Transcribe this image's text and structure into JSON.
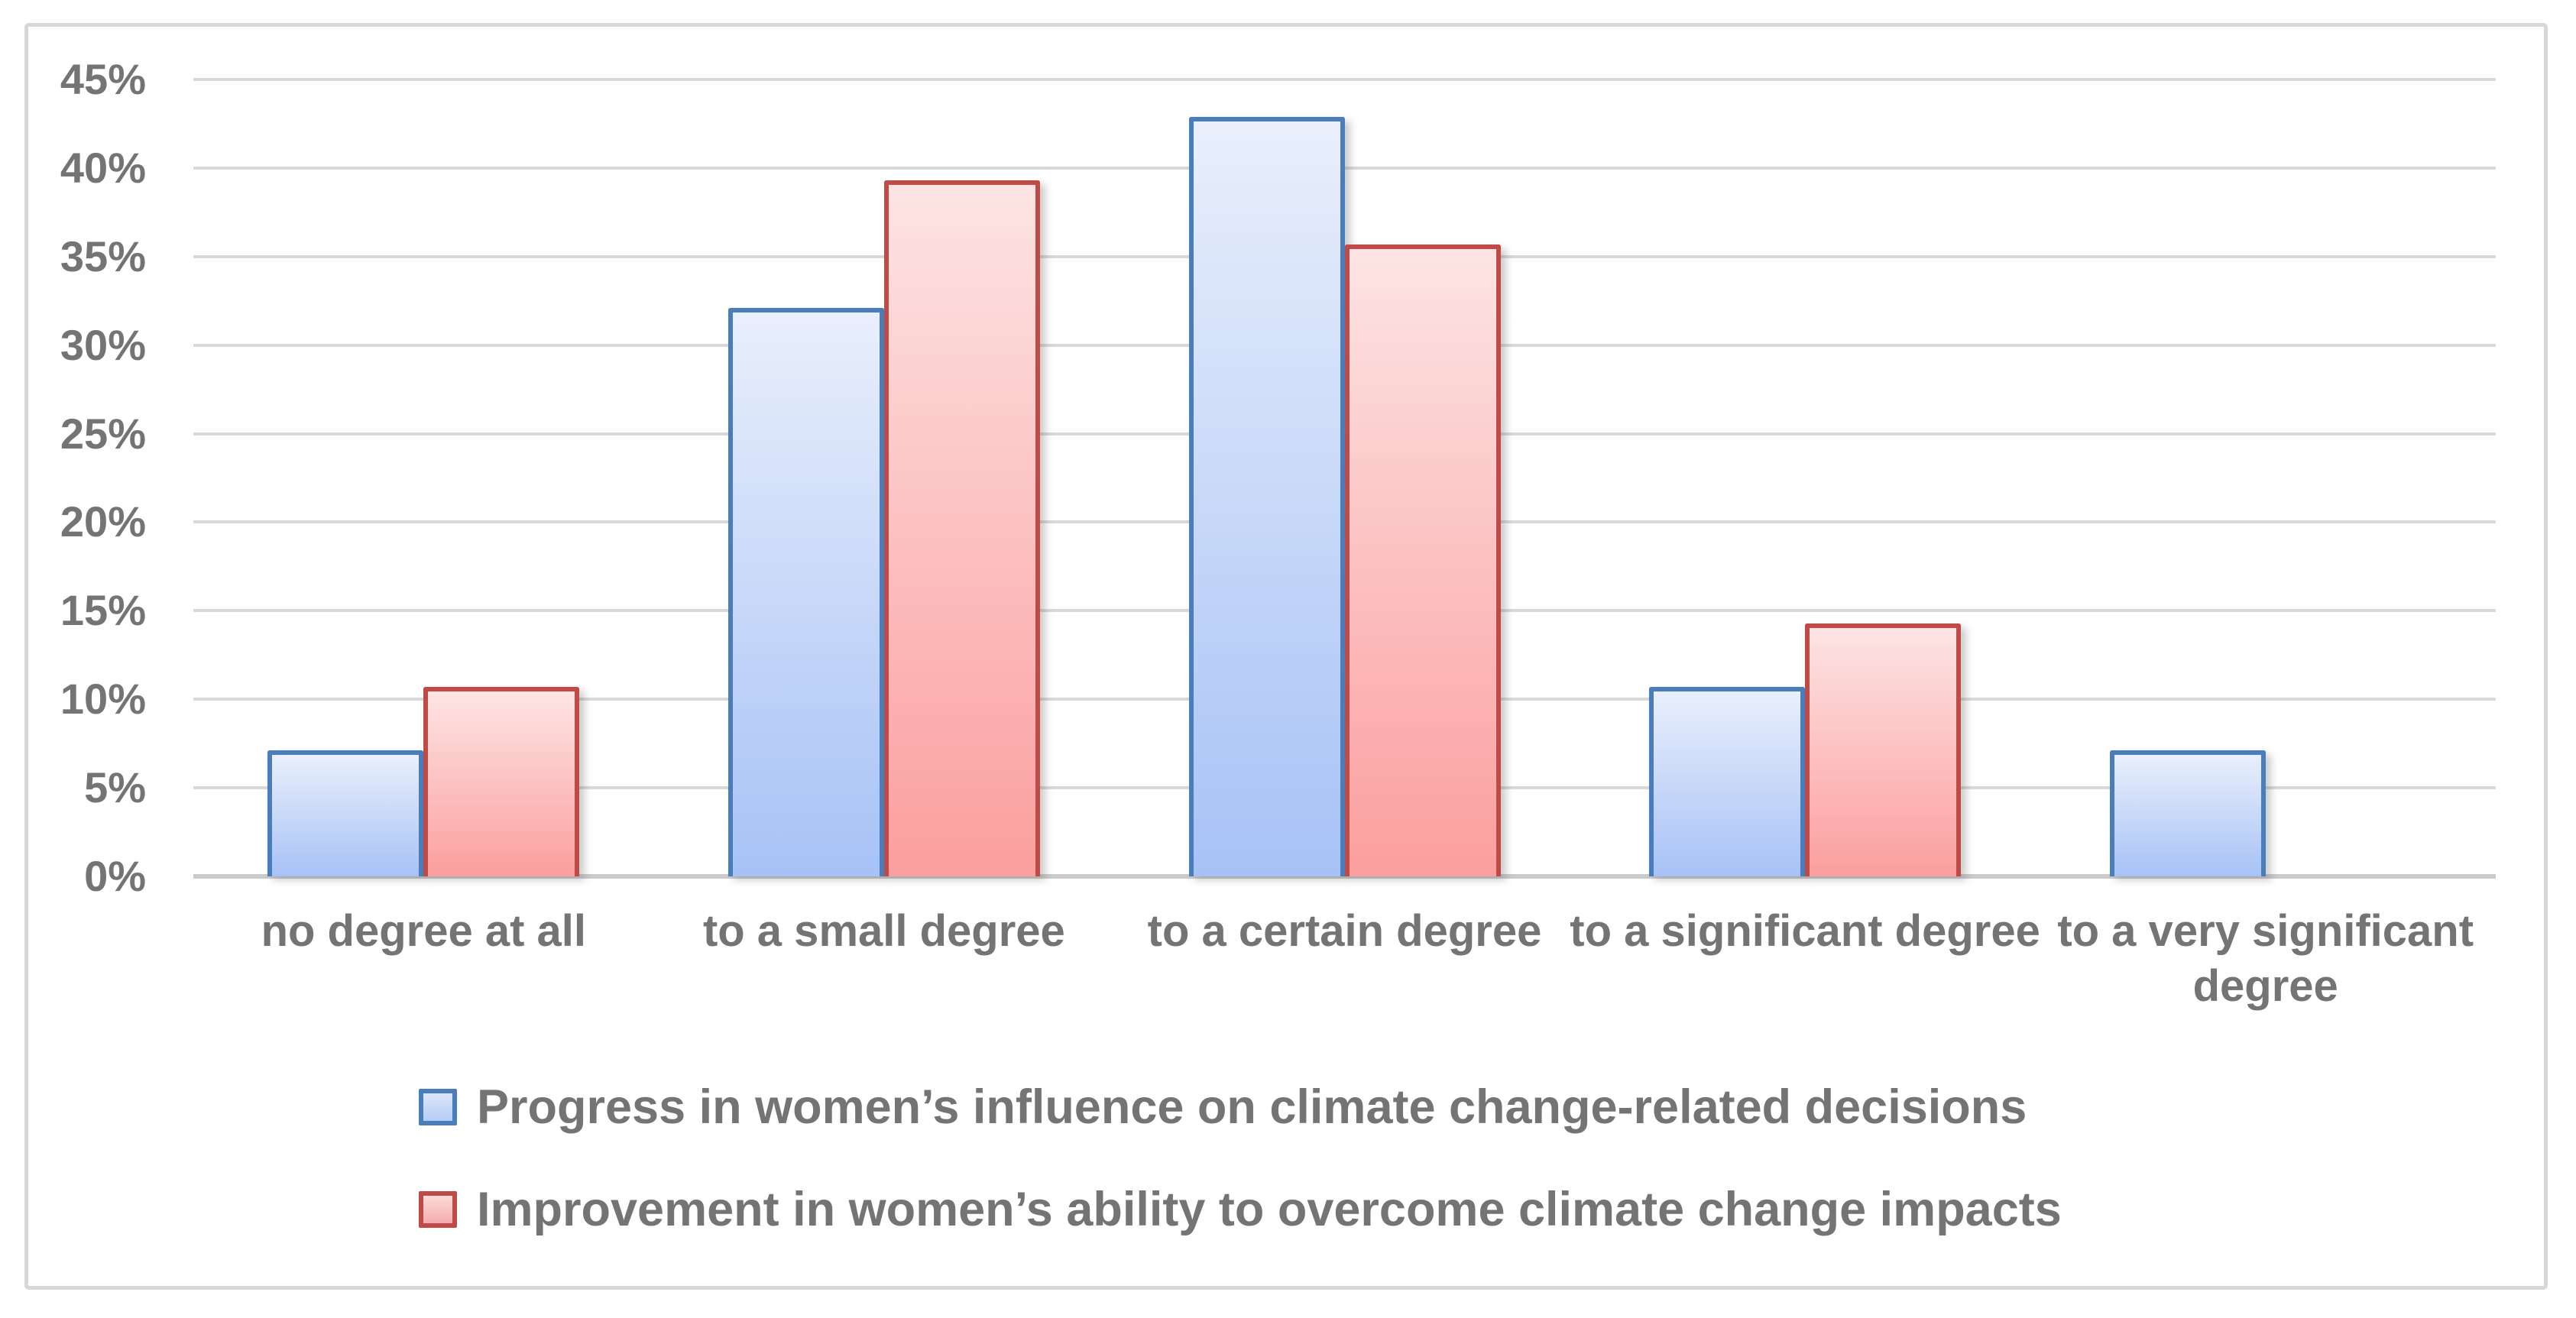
{
  "figure": {
    "background": "#ffffff",
    "border_color": "#d7d7d7"
  },
  "chart_data": {
    "type": "bar",
    "categories": [
      "no degree at all",
      "to a small degree",
      "to a certain degree",
      "to a significant degree",
      "to a very significant degree"
    ],
    "series": [
      {
        "name": "Progress in women’s influence on climate change-related decisions",
        "values": [
          7.1,
          32.1,
          42.9,
          10.7,
          7.1
        ],
        "border_color": "#4a7ebb",
        "fill_top": "#e9effb",
        "fill_bottom": "#a7c2f6",
        "swatch_fill_top": "#dce7fa",
        "swatch_fill_bottom": "#b5ccf4"
      },
      {
        "name": "Improvement in women’s ability to overcome climate change impacts",
        "values": [
          10.7,
          39.3,
          35.7,
          14.3,
          0
        ],
        "border_color": "#be4b48",
        "fill_top": "#fde4e4",
        "fill_bottom": "#fb9e9e",
        "swatch_fill_top": "#fcdada",
        "swatch_fill_bottom": "#f6abab"
      }
    ],
    "title": "",
    "xlabel": "",
    "ylabel": "",
    "ylim": [
      0,
      45
    ],
    "ytick_step": 5,
    "ytick_labels": [
      "0%",
      "5%",
      "10%",
      "15%",
      "20%",
      "25%",
      "30%",
      "35%",
      "40%",
      "45%"
    ],
    "grid": true,
    "gridline_color": "#d9d9d9",
    "axis_line_color": "#cbcbcb",
    "text_color": "#747474",
    "legend_position": "bottom-left"
  }
}
